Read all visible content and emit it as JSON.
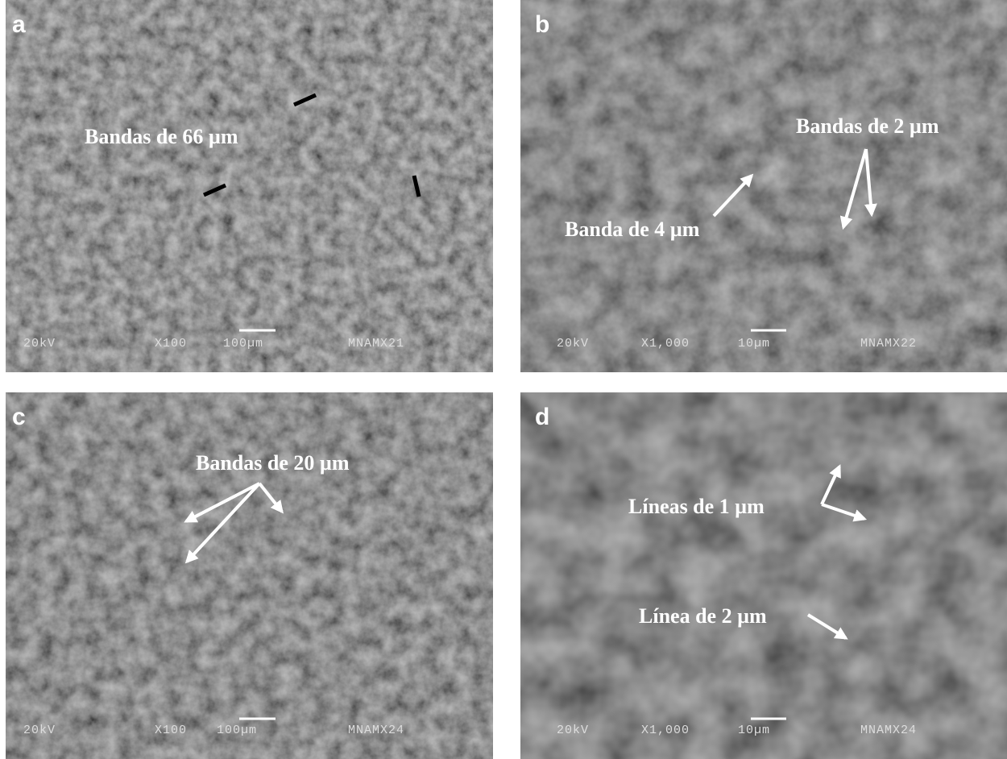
{
  "panels": [
    {
      "label": "a",
      "annotations": [
        "Bandas de 66 µm"
      ],
      "info": [
        "20kV",
        "X100",
        "100µm",
        "MNAMX21"
      ]
    },
    {
      "label": "b",
      "annotations": [
        "Bandas de 2 µm",
        "Banda de 4 µm"
      ],
      "info": [
        "20kV",
        "X1,000",
        "10µm",
        "MNAMX22"
      ]
    },
    {
      "label": "c",
      "annotations": [
        "Bandas de 20 µm"
      ],
      "info": [
        "20kV",
        "X100",
        "100µm",
        "MNAMX24"
      ]
    },
    {
      "label": "d",
      "annotations": [
        "Líneas de 1 µm",
        "Línea de 2 µm"
      ],
      "info": [
        "20kV",
        "X1,000",
        "10µm",
        "MNAMX24"
      ]
    }
  ]
}
